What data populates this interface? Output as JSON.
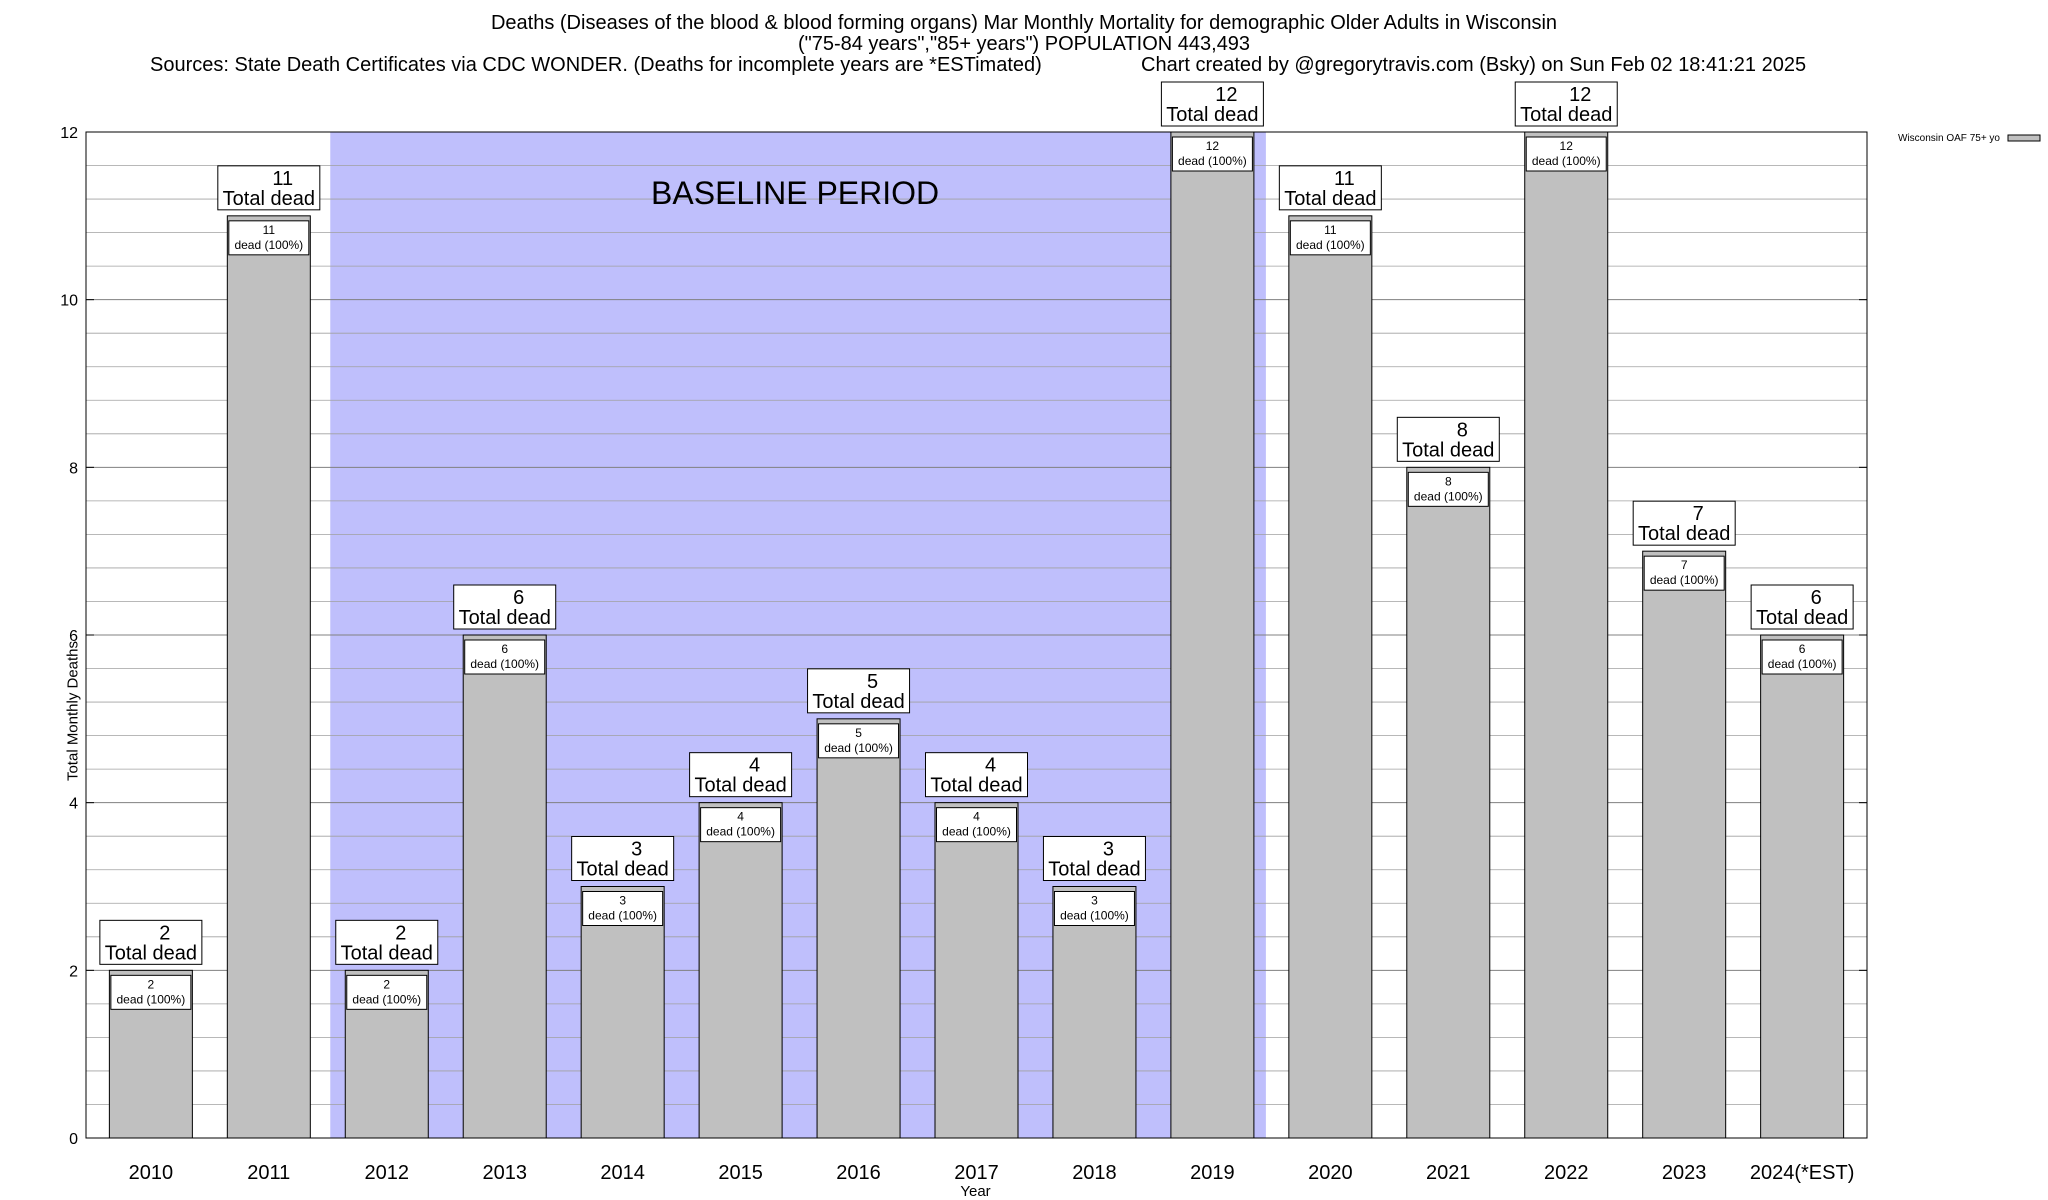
{
  "header": {
    "title": "Deaths (Diseases of the blood & blood forming organs) Mar Monthly Mortality for demographic Older Adults in Wisconsin",
    "subtitle": "(\"75-84 years\",\"85+ years\") POPULATION 443,493",
    "sources": "Sources: State Death Certificates via CDC WONDER. (Deaths for incomplete years are *ESTimated)",
    "credit": "Chart created by @gregorytravis.com (Bsky) on Sun Feb 02 18:41:21 2025"
  },
  "colors": {
    "bar_fill": "#c0c0c0",
    "baseline_fill": "#bfbffc",
    "grid": "#a0a0a0"
  },
  "chart_data": {
    "type": "bar",
    "categories": [
      "2010",
      "2011",
      "2012",
      "2013",
      "2014",
      "2015",
      "2016",
      "2017",
      "2018",
      "2019",
      "2020",
      "2021",
      "2022",
      "2023",
      "2024(*EST)"
    ],
    "series": [
      {
        "name": "Wisconsin OAF 75+ yo",
        "values": [
          2,
          11,
          2,
          6,
          3,
          4,
          5,
          4,
          3,
          12,
          11,
          8,
          12,
          7,
          6
        ]
      }
    ],
    "total_label": "Total dead",
    "inner_label": "dead (100%)",
    "xlabel": "Year",
    "ylabel": "Total Monthly Deaths",
    "ylim": [
      0,
      12
    ],
    "yticks": [
      0,
      2,
      4,
      6,
      8,
      10,
      12
    ],
    "grid": true,
    "legend_position": "top-right",
    "annotation": {
      "text": "BASELINE PERIOD",
      "from_category": "2012",
      "to_category": "2019"
    }
  }
}
